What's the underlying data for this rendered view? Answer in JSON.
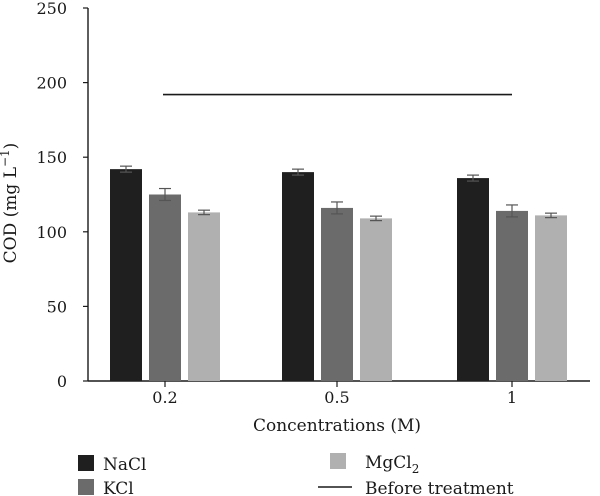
{
  "chart_data": {
    "type": "bar",
    "xlabel": "Concentrations (M)",
    "ylabel": "COD (mg L",
    "ylabel_superscript": "−1",
    "ylabel_suffix": ")",
    "ylim": [
      0,
      250
    ],
    "yticks": [
      0,
      50,
      100,
      150,
      200,
      250
    ],
    "categories": [
      "0.2",
      "0.5",
      "1"
    ],
    "series": [
      {
        "name": "NaCl",
        "color": "#1f1f1f",
        "values": [
          142,
          140,
          136
        ],
        "errors": [
          2,
          2,
          2
        ]
      },
      {
        "name": "KCl",
        "color": "#6b6b6b",
        "values": [
          125,
          116,
          114
        ],
        "errors": [
          4,
          4,
          4
        ]
      },
      {
        "name": "MgCl",
        "name_subscript": "2",
        "color": "#b0b0b0",
        "values": [
          113,
          109,
          111
        ],
        "errors": [
          1.5,
          1.5,
          1.5
        ]
      }
    ],
    "reference_line": {
      "name": "Before treatment",
      "value": 192,
      "color": "#1a1a1a"
    },
    "grid": false,
    "legend_position": "bottom"
  }
}
